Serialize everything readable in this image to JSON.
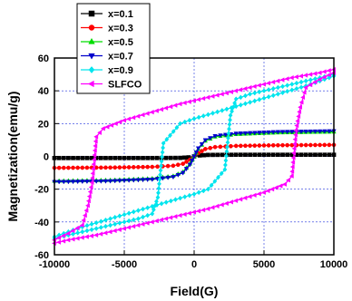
{
  "chart_data": {
    "type": "line",
    "xlabel": "Field(G)",
    "ylabel": "Magnetization(emu/g)",
    "xlim": [
      -10000,
      10000
    ],
    "ylim": [
      -60,
      60
    ],
    "x_ticks": [
      -10000,
      -5000,
      0,
      5000,
      10000
    ],
    "y_ticks": [
      -60,
      -40,
      -20,
      0,
      20,
      40,
      60
    ],
    "x_tick_labels": [
      "-10000",
      "-5000",
      "0",
      "5000",
      "10000"
    ],
    "y_tick_labels": [
      "-60",
      "-40",
      "-20",
      "0",
      "20",
      "40",
      "60"
    ],
    "grid": true,
    "legend_position": "top-left",
    "series": [
      {
        "name": "x=0.1",
        "color": "#000000",
        "marker": "square",
        "branches": [
          {
            "x": [
              -10000,
              -6000,
              -3000,
              -1000,
              -400,
              0,
              400,
              1000,
              3000,
              6000,
              10000
            ],
            "y": [
              -1,
              -1,
              -1,
              -0.9,
              -0.6,
              0,
              0.6,
              0.9,
              1,
              1,
              1
            ]
          }
        ]
      },
      {
        "name": "x=0.3",
        "color": "#ff0000",
        "marker": "circle",
        "branches": [
          {
            "x": [
              -10000,
              -6000,
              -3000,
              -1500,
              -800,
              -300,
              0,
              300,
              800,
              1500,
              3000,
              6000,
              10000
            ],
            "y": [
              -7,
              -6.8,
              -6.4,
              -5.7,
              -4.5,
              -2,
              0,
              2,
              4.5,
              5.7,
              6.4,
              6.8,
              7
            ]
          }
        ]
      },
      {
        "name": "x=0.5",
        "color": "#00dd00",
        "marker": "triangle-up",
        "branches": [
          {
            "x": [
              -10000,
              -6000,
              -3000,
              -1500,
              -800,
              -300,
              0,
              300,
              800,
              1500,
              3000,
              6000,
              10000
            ],
            "y": [
              -15,
              -14.5,
              -13.5,
              -12,
              -9.5,
              -4.5,
              0,
              4.5,
              9.5,
              12,
              13.5,
              14.5,
              15
            ]
          }
        ]
      },
      {
        "name": "x=0.7",
        "color": "#0000cc",
        "marker": "triangle-down",
        "branches": [
          {
            "x": [
              -10000,
              -6000,
              -3000,
              -1500,
              -800,
              -300,
              0,
              300,
              800,
              1500,
              3000,
              6000,
              10000
            ],
            "y": [
              -15.5,
              -15,
              -14,
              -12.5,
              -10,
              -5,
              0,
              5,
              10,
              12.5,
              14,
              15,
              15.5
            ]
          }
        ]
      },
      {
        "name": "x=0.9",
        "color": "#00e5ee",
        "marker": "diamond",
        "branches": [
          {
            "x": [
              -10000,
              -8000,
              -6000,
              -4000,
              -3000,
              -2600,
              -2200,
              -1000,
              0,
              2000,
              4000,
              6000,
              8000,
              10000
            ],
            "y": [
              -50,
              -46,
              -42,
              -38,
              -35,
              -25,
              8,
              20,
              23,
              28,
              33,
              38,
              43,
              49
            ]
          },
          {
            "x": [
              10000,
              8000,
              6000,
              4000,
              3000,
              2600,
              2200,
              1000,
              0,
              -2000,
              -4000,
              -6000,
              -8000,
              -10000
            ],
            "y": [
              50,
              46,
              42,
              38,
              35,
              25,
              -8,
              -20,
              -23,
              -28,
              -33,
              -38,
              -43,
              -49
            ]
          }
        ]
      },
      {
        "name": "SLFCO",
        "color": "#ff00ff",
        "marker": "triangle-left",
        "branches": [
          {
            "x": [
              -10000,
              -9000,
              -8000,
              -7600,
              -7300,
              -7000,
              -6500,
              -5000,
              -3000,
              -1000,
              1000,
              3000,
              5000,
              7000,
              9000,
              10000
            ],
            "y": [
              -51,
              -47,
              -42,
              -30,
              -16,
              12,
              17,
              22,
              27,
              32,
              36,
              40,
              44,
              48,
              51,
              53
            ]
          },
          {
            "x": [
              10000,
              9000,
              8000,
              7600,
              7300,
              7000,
              6500,
              5000,
              3000,
              1000,
              -1000,
              -3000,
              -5000,
              -7000,
              -9000,
              -10000
            ],
            "y": [
              51,
              47,
              42,
              30,
              16,
              -12,
              -17,
              -22,
              -27,
              -32,
              -36,
              -40,
              -44,
              -48,
              -51,
              -53
            ]
          }
        ]
      }
    ]
  }
}
